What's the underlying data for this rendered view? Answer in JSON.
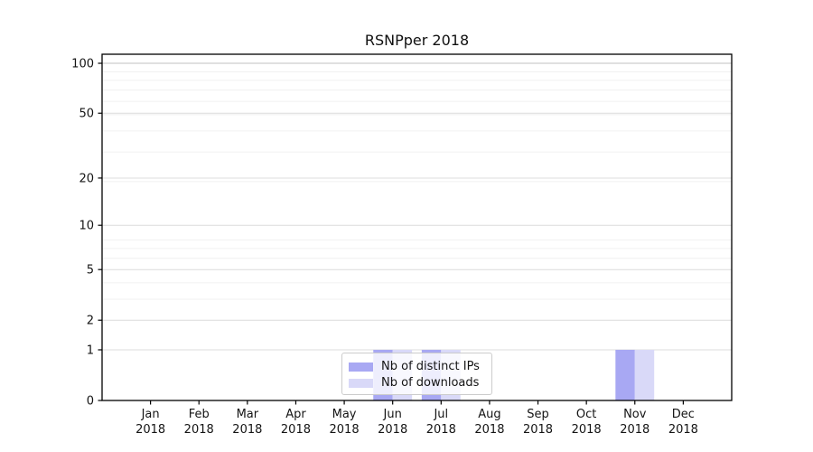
{
  "title": "RSNPper 2018",
  "chart_data": {
    "type": "bar",
    "title": "RSNPper 2018",
    "categories": [
      "Jan 2018",
      "Feb 2018",
      "Mar 2018",
      "Apr 2018",
      "May 2018",
      "Jun 2018",
      "Jul 2018",
      "Aug 2018",
      "Sep 2018",
      "Oct 2018",
      "Nov 2018",
      "Dec 2018"
    ],
    "x_tick_month_labels": [
      "Jan",
      "Feb",
      "Mar",
      "Apr",
      "May",
      "Jun",
      "Jul",
      "Aug",
      "Sep",
      "Oct",
      "Nov",
      "Dec"
    ],
    "x_tick_year_label": "2018",
    "series": [
      {
        "name": "Nb of distinct IPs",
        "color": "#a8a8f3",
        "values": [
          0,
          0,
          0,
          0,
          0,
          1,
          1,
          0,
          0,
          0,
          1,
          0
        ]
      },
      {
        "name": "Nb of downloads",
        "color": "#d9d9f8",
        "values": [
          0,
          0,
          0,
          0,
          0,
          1,
          1,
          0,
          0,
          0,
          1,
          0
        ]
      }
    ],
    "xlabel": "",
    "ylabel": "",
    "y_axis": {
      "scale": "log1p",
      "tick_values": [
        0,
        1,
        2,
        5,
        10,
        20,
        50,
        100
      ],
      "tick_labels": [
        "0",
        "1",
        "2",
        "5",
        "10",
        "20",
        "50",
        "100"
      ],
      "major_gridlines": [
        1,
        2,
        5,
        10,
        20,
        50,
        100
      ],
      "minor_gridlines": [
        3,
        4,
        6,
        7,
        8,
        19,
        29,
        39,
        49,
        59,
        69,
        79,
        89
      ],
      "ylim": [
        0,
        113
      ]
    },
    "grid": true,
    "legend_position": "lower-center"
  },
  "colors": {
    "background": "#ffffff",
    "axis": "#000000",
    "text": "#141414",
    "grid_major": "#dcdcdc",
    "grid_top_major": "#c2c2c2",
    "grid_minor": "#f0f0f0"
  }
}
